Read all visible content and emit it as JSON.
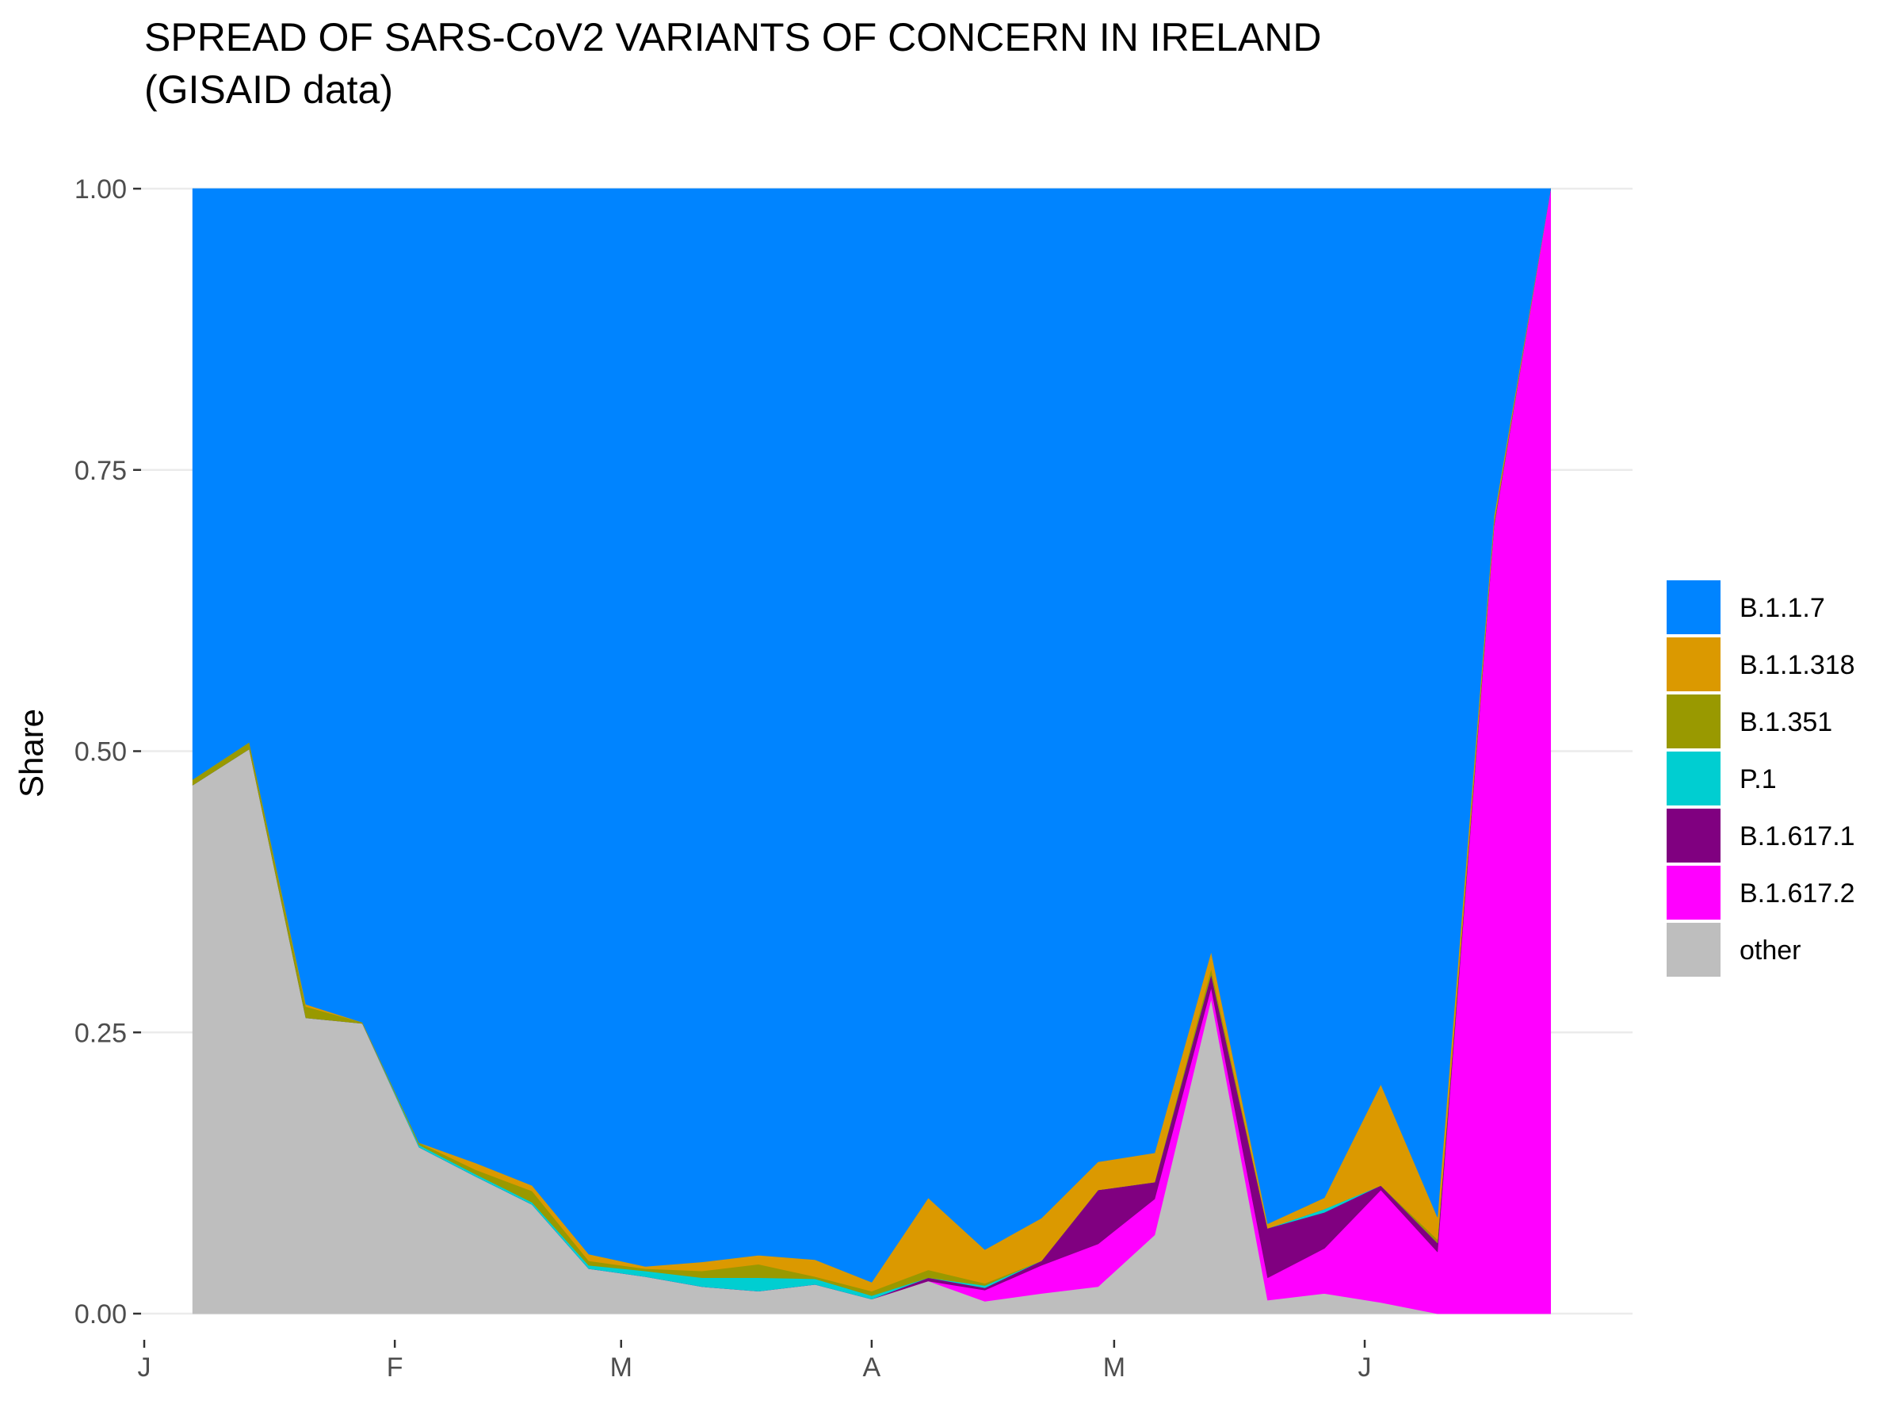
{
  "chart_data": {
    "type": "area",
    "stacked": true,
    "title_line1": "SPREAD OF SARS-CoV2 VARIANTS OF CONCERN IN IRELAND",
    "title_line2": "(GISAID data)",
    "xlabel": "",
    "ylabel": "Share",
    "ylim": [
      0,
      1
    ],
    "y_ticks": [
      0,
      0.25,
      0.5,
      0.75,
      1
    ],
    "y_tick_labels": [
      "0.00",
      "0.25",
      "0.50",
      "0.75",
      "1.00"
    ],
    "x_unit": "day of year 2021",
    "xlim": [
      1,
      182
    ],
    "x_ticks": [
      1,
      32,
      60,
      91,
      121,
      152
    ],
    "x_tick_labels": [
      "J",
      "F",
      "M",
      "A",
      "M",
      "J"
    ],
    "x": [
      7,
      14,
      21,
      28,
      35,
      42,
      49,
      56,
      63,
      70,
      77,
      84,
      91,
      98,
      105,
      112,
      119,
      126,
      133,
      140,
      147,
      154,
      161,
      168,
      175
    ],
    "series": [
      {
        "name": "other",
        "color": "#BEBEBE",
        "values": [
          0.47,
          0.502,
          0.263,
          0.258,
          0.148,
          0.122,
          0.097,
          0.04,
          0.033,
          0.024,
          0.02,
          0.026,
          0.013,
          0.029,
          0.011,
          0.018,
          0.024,
          0.07,
          0.28,
          0.012,
          0.018,
          0.01,
          0.0,
          0.0,
          0.0
        ]
      },
      {
        "name": "B.1.617.2",
        "color": "#FF00FF",
        "values": [
          0,
          0,
          0,
          0,
          0,
          0,
          0,
          0,
          0,
          0,
          0,
          0,
          0,
          0,
          0.01,
          0.025,
          0.038,
          0.032,
          0.01,
          0.02,
          0.04,
          0.1,
          0.055,
          0.7,
          1.0
        ]
      },
      {
        "name": "B.1.617.1",
        "color": "#800080",
        "values": [
          0,
          0,
          0,
          0,
          0,
          0,
          0,
          0,
          0,
          0,
          0,
          0,
          0,
          0.003,
          0.002,
          0.004,
          0.048,
          0.015,
          0.012,
          0.044,
          0.032,
          0.004,
          0.008,
          0.002,
          0
        ]
      },
      {
        "name": "P.1",
        "color": "#00CED1",
        "values": [
          0,
          0,
          0,
          0,
          0.002,
          0.002,
          0.002,
          0.003,
          0.005,
          0.008,
          0.012,
          0.005,
          0.003,
          0,
          0.002,
          0,
          0,
          0,
          0,
          0,
          0.003,
          0,
          0,
          0,
          0
        ]
      },
      {
        "name": "B.1.351",
        "color": "#999900",
        "values": [
          0.005,
          0.006,
          0.01,
          0.001,
          0.002,
          0.004,
          0.01,
          0.004,
          0.002,
          0.006,
          0.012,
          0.002,
          0.004,
          0.007,
          0.002,
          0,
          0,
          0,
          0.005,
          0,
          0,
          0,
          0.003,
          0.002,
          0
        ]
      },
      {
        "name": "B.1.1.318",
        "color": "#DB9900",
        "values": [
          0,
          0,
          0.002,
          0,
          0,
          0.006,
          0.005,
          0.006,
          0.002,
          0.008,
          0.008,
          0.015,
          0.008,
          0.064,
          0.03,
          0.038,
          0.025,
          0.026,
          0.015,
          0.004,
          0.01,
          0.09,
          0.02,
          0.005,
          0
        ]
      },
      {
        "name": "B.1.1.7",
        "color": "#0084FF",
        "values": [
          0.525,
          0.492,
          0.725,
          0.741,
          0.848,
          0.866,
          0.886,
          0.947,
          0.958,
          0.954,
          0.948,
          0.952,
          0.972,
          0.897,
          0.943,
          0.915,
          0.865,
          0.857,
          0.678,
          0.92,
          0.897,
          0.796,
          0.914,
          0.291,
          0
        ]
      }
    ],
    "legend": {
      "position": "right",
      "entries": [
        {
          "name": "B.1.1.7",
          "color": "#0084FF"
        },
        {
          "name": "B.1.1.318",
          "color": "#DB9900"
        },
        {
          "name": "B.1.351",
          "color": "#999900"
        },
        {
          "name": "P.1",
          "color": "#00CED1"
        },
        {
          "name": "B.1.617.1",
          "color": "#800080"
        },
        {
          "name": "B.1.617.2",
          "color": "#FF00FF"
        },
        {
          "name": "other",
          "color": "#BEBEBE"
        }
      ]
    },
    "grid": true
  }
}
